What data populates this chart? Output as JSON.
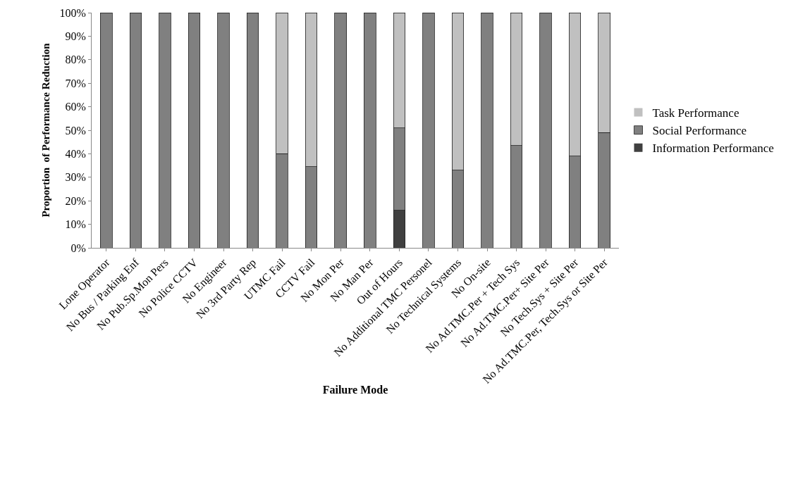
{
  "chart_data": {
    "type": "bar",
    "stacked": true,
    "xlabel": "Failure Mode",
    "ylabel": "Proportion  of Performance Reduction",
    "categories": [
      "Lone Operator",
      "No Bus / Parking Enf",
      "No Pub.Sp.Mon Pers",
      "No Police CCTV",
      "No Engineer",
      "No 3rd Party Rep",
      "UTMC Fail",
      "CCTV Fail",
      "No Mon Per",
      "No Man Per",
      "Out of Hours",
      "No Additional TMC Personel",
      "No Technical Systems",
      "No On-site",
      "No Ad.TMC.Per + Tech Sys",
      "No Ad.TMC.Per+ Site Per",
      "No Tech.Sys + Site Per",
      "No Ad.TMC.Per, Tech.Sys or Site Per"
    ],
    "series": [
      {
        "name": "Information Performance",
        "color": "#404040",
        "values": [
          0,
          0,
          0,
          0,
          0,
          0,
          0,
          0,
          0,
          0,
          16,
          0,
          0,
          0,
          0,
          0,
          0,
          0
        ]
      },
      {
        "name": "Social Performance",
        "color": "#808080",
        "values": [
          100,
          100,
          100,
          100,
          100,
          100,
          40,
          34.5,
          100,
          100,
          35,
          100,
          33,
          100,
          43.5,
          100,
          39,
          49
        ]
      },
      {
        "name": "Task Performance",
        "color": "#c0c0c0",
        "values": [
          0,
          0,
          0,
          0,
          0,
          0,
          60,
          65.5,
          0,
          0,
          49,
          0,
          67,
          0,
          56.5,
          0,
          61,
          51
        ]
      }
    ],
    "ylim": [
      0,
      100
    ],
    "yticks": [
      {
        "value": 0,
        "label": "0%"
      },
      {
        "value": 10,
        "label": "10%"
      },
      {
        "value": 20,
        "label": "20%"
      },
      {
        "value": 30,
        "label": "30%"
      },
      {
        "value": 40,
        "label": "40%"
      },
      {
        "value": 50,
        "label": "50%"
      },
      {
        "value": 60,
        "label": "60%"
      },
      {
        "value": 70,
        "label": "70%"
      },
      {
        "value": 80,
        "label": "80%"
      },
      {
        "value": 90,
        "label": "90%"
      },
      {
        "value": 100,
        "label": "100%"
      }
    ],
    "grid": false,
    "legend": "right"
  }
}
